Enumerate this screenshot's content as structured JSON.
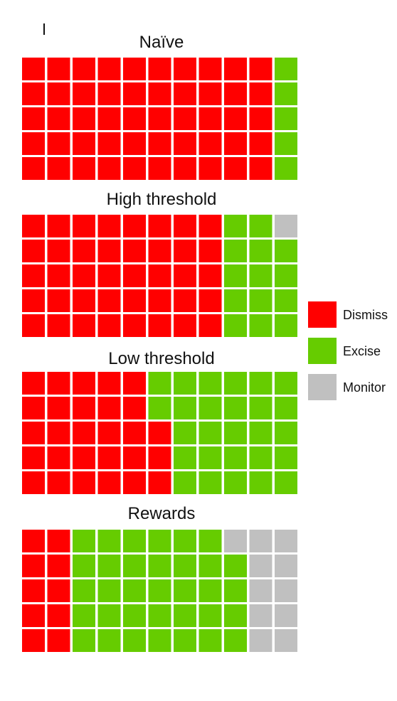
{
  "chart_data": {
    "type": "waffle",
    "grid": {
      "rows": 5,
      "cols": 11
    },
    "categories": [
      "Dismiss",
      "Excise",
      "Monitor"
    ],
    "colors": {
      "Dismiss": "#ff0000",
      "Excise": "#66cc00",
      "Monitor": "#c0c0c0"
    },
    "legend": {
      "placement": "right",
      "entries": [
        {
          "label": "Dismiss",
          "color": "#ff0000"
        },
        {
          "label": "Excise",
          "color": "#66cc00"
        },
        {
          "label": "Monitor",
          "color": "#c0c0c0"
        }
      ]
    },
    "panels": [
      {
        "title": "Naïve",
        "rows": [
          [
            "D",
            "D",
            "D",
            "D",
            "D",
            "D",
            "D",
            "D",
            "D",
            "D",
            "E"
          ],
          [
            "D",
            "D",
            "D",
            "D",
            "D",
            "D",
            "D",
            "D",
            "D",
            "D",
            "E"
          ],
          [
            "D",
            "D",
            "D",
            "D",
            "D",
            "D",
            "D",
            "D",
            "D",
            "D",
            "E"
          ],
          [
            "D",
            "D",
            "D",
            "D",
            "D",
            "D",
            "D",
            "D",
            "D",
            "D",
            "E"
          ],
          [
            "D",
            "D",
            "D",
            "D",
            "D",
            "D",
            "D",
            "D",
            "D",
            "D",
            "E"
          ]
        ]
      },
      {
        "title": "High threshold",
        "rows": [
          [
            "D",
            "D",
            "D",
            "D",
            "D",
            "D",
            "D",
            "D",
            "E",
            "E",
            "M"
          ],
          [
            "D",
            "D",
            "D",
            "D",
            "D",
            "D",
            "D",
            "D",
            "E",
            "E",
            "E"
          ],
          [
            "D",
            "D",
            "D",
            "D",
            "D",
            "D",
            "D",
            "D",
            "E",
            "E",
            "E"
          ],
          [
            "D",
            "D",
            "D",
            "D",
            "D",
            "D",
            "D",
            "D",
            "E",
            "E",
            "E"
          ],
          [
            "D",
            "D",
            "D",
            "D",
            "D",
            "D",
            "D",
            "D",
            "E",
            "E",
            "E"
          ]
        ]
      },
      {
        "title": "Low threshold",
        "rows": [
          [
            "D",
            "D",
            "D",
            "D",
            "D",
            "E",
            "E",
            "E",
            "E",
            "E",
            "E"
          ],
          [
            "D",
            "D",
            "D",
            "D",
            "D",
            "E",
            "E",
            "E",
            "E",
            "E",
            "E"
          ],
          [
            "D",
            "D",
            "D",
            "D",
            "D",
            "D",
            "E",
            "E",
            "E",
            "E",
            "E"
          ],
          [
            "D",
            "D",
            "D",
            "D",
            "D",
            "D",
            "E",
            "E",
            "E",
            "E",
            "E"
          ],
          [
            "D",
            "D",
            "D",
            "D",
            "D",
            "D",
            "E",
            "E",
            "E",
            "E",
            "E"
          ]
        ]
      },
      {
        "title": "Rewards",
        "rows": [
          [
            "D",
            "D",
            "E",
            "E",
            "E",
            "E",
            "E",
            "E",
            "M",
            "M",
            "M"
          ],
          [
            "D",
            "D",
            "E",
            "E",
            "E",
            "E",
            "E",
            "E",
            "E",
            "M",
            "M"
          ],
          [
            "D",
            "D",
            "E",
            "E",
            "E",
            "E",
            "E",
            "E",
            "E",
            "M",
            "M"
          ],
          [
            "D",
            "D",
            "E",
            "E",
            "E",
            "E",
            "E",
            "E",
            "E",
            "M",
            "M"
          ],
          [
            "D",
            "D",
            "E",
            "E",
            "E",
            "E",
            "E",
            "E",
            "E",
            "M",
            "M"
          ]
        ]
      }
    ]
  }
}
